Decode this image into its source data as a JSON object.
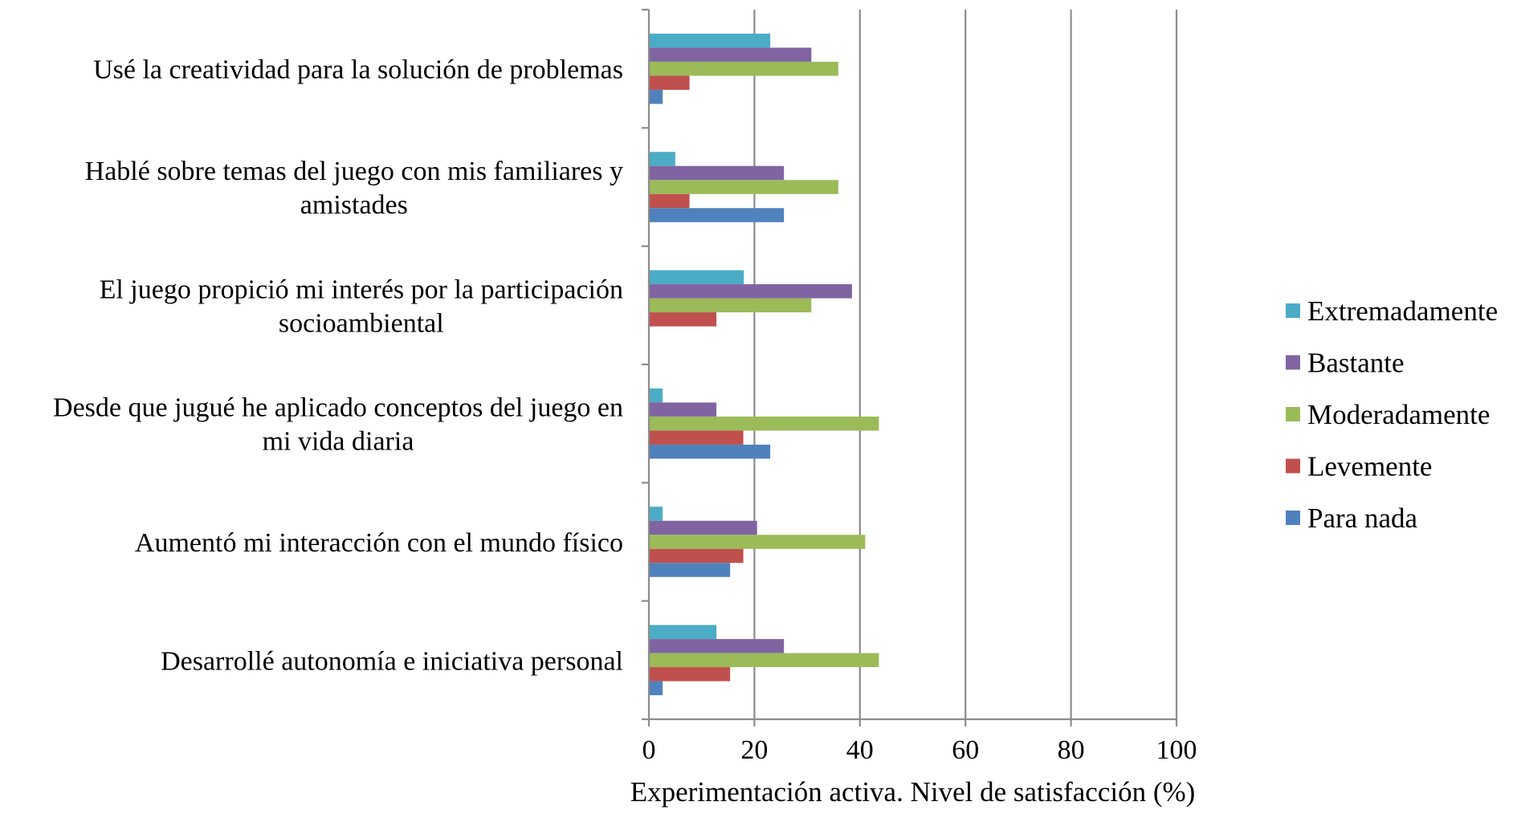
{
  "chart_data": {
    "type": "bar",
    "orientation": "horizontal",
    "title": "",
    "xlabel": "Experimentación activa. Nivel de satisfacción (%)",
    "ylabel": "",
    "xlim": [
      0,
      100
    ],
    "xticks": [
      0,
      20,
      40,
      60,
      80,
      100
    ],
    "grid": "vertical",
    "legend_position": "right",
    "categories": [
      [
        "Usé la creatividad para la solución de problemas"
      ],
      [
        "Hablé sobre temas del juego con mis familiares y",
        "amistades"
      ],
      [
        "El juego propició mi interés por la participación",
        "socioambiental"
      ],
      [
        "Desde que jugué he aplicado conceptos del juego en",
        "mi vida diaria"
      ],
      [
        "Aumentó mi interacción con el mundo físico"
      ],
      [
        "Desarrollé autonomía e iniciativa personal"
      ]
    ],
    "series": [
      {
        "name": "Extremadamente",
        "color": "#4BACC6",
        "values": [
          23,
          5,
          18,
          2.6,
          2.6,
          12.8
        ]
      },
      {
        "name": "Bastante",
        "color": "#8064A2",
        "values": [
          30.8,
          25.6,
          38.5,
          12.8,
          20.5,
          25.6
        ]
      },
      {
        "name": "Moderadamente",
        "color": "#9BBB59",
        "values": [
          35.9,
          35.9,
          30.8,
          43.6,
          41,
          43.6
        ]
      },
      {
        "name": "Levemente",
        "color": "#C0504D",
        "values": [
          7.7,
          7.7,
          12.8,
          17.9,
          17.9,
          15.4
        ]
      },
      {
        "name": "Para nada",
        "color": "#4F81BD",
        "values": [
          2.6,
          25.6,
          0,
          23,
          15.4,
          2.6
        ]
      }
    ]
  }
}
